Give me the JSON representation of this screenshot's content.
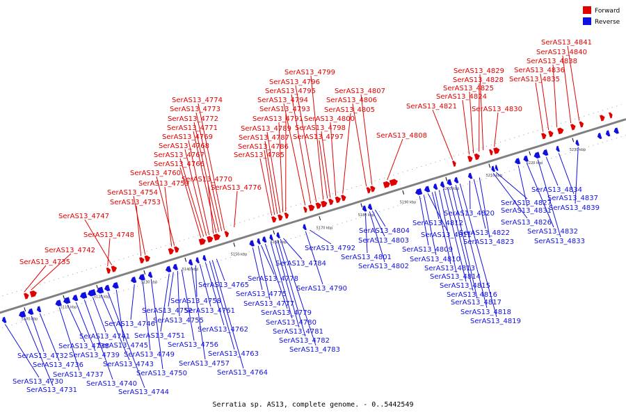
{
  "caption": "Serratia sp. AS13, complete genome. - 0..5442549",
  "legend": [
    {
      "label": "Forward",
      "color": "#e00000"
    },
    {
      "label": "Reverse",
      "color": "#1010e0"
    }
  ],
  "colors": {
    "forward": "#e00000",
    "reverse": "#1010e0",
    "backbone": "#808080"
  },
  "ticks": [
    "5100 kbp",
    "5110 kbp",
    "5120 kbp",
    "5130 kbp",
    "5140 kbp",
    "5150 kbp",
    "5160 kbp",
    "5170 kbp",
    "5180 kbp",
    "5190 kbp",
    "5200 kbp",
    "5210 kbp",
    "5220 kbp",
    "5230 kbp"
  ],
  "forward_genes": [
    "SerAS13_4735",
    "SerAS13_4742",
    "SerAS13_4748",
    "SerAS13_4747",
    "SerAS13_4753",
    "SerAS13_4754",
    "SerAS13_4759",
    "SerAS13_4760",
    "SerAS13_4766",
    "SerAS13_4767",
    "SerAS13_4768",
    "SerAS13_4769",
    "SerAS13_4770",
    "SerAS13_4771",
    "SerAS13_4772",
    "SerAS13_4773",
    "SerAS13_4774",
    "SerAS13_4776",
    "SerAS13_4785",
    "SerAS13_4786",
    "SerAS13_4787",
    "SerAS13_4789",
    "SerAS13_4791",
    "SerAS13_4793",
    "SerAS13_4794",
    "SerAS13_4795",
    "SerAS13_4796",
    "SerAS13_4799",
    "SerAS13_4797",
    "SerAS13_4798",
    "SerAS13_4800",
    "SerAS13_4805",
    "SerAS13_4806",
    "SerAS13_4807",
    "SerAS13_4808",
    "SerAS13_4821",
    "SerAS13_4824",
    "SerAS13_4825",
    "SerAS13_4828",
    "SerAS13_4829",
    "SerAS13_4830",
    "SerAS13_4835",
    "SerAS13_4836",
    "SerAS13_4838",
    "SerAS13_4840",
    "SerAS13_4841"
  ],
  "reverse_genes": [
    "SerAS13_4730",
    "SerAS13_4731",
    "SerAS13_4732",
    "SerAS13_4736",
    "SerAS13_4737",
    "SerAS13_4738",
    "SerAS13_4739",
    "SerAS13_4740",
    "SerAS13_4741",
    "SerAS13_4743",
    "SerAS13_4744",
    "SerAS13_4745",
    "SerAS13_4746",
    "SerAS13_4749",
    "SerAS13_4750",
    "SerAS13_4751",
    "SerAS13_4752",
    "SerAS13_4755",
    "SerAS13_4756",
    "SerAS13_4757",
    "SerAS13_4758",
    "SerAS13_4761",
    "SerAS13_4762",
    "SerAS13_4763",
    "SerAS13_4764",
    "SerAS13_4765",
    "SerAS13_4775",
    "SerAS13_4777",
    "SerAS13_4778",
    "SerAS13_4779",
    "SerAS13_4780",
    "SerAS13_4781",
    "SerAS13_4782",
    "SerAS13_4783",
    "SerAS13_4784",
    "SerAS13_4790",
    "SerAS13_4792",
    "SerAS13_4801",
    "SerAS13_4802",
    "SerAS13_4803",
    "SerAS13_4804",
    "SerAS13_4809",
    "SerAS13_4810",
    "SerAS13_4811",
    "SerAS13_4812",
    "SerAS13_4813",
    "SerAS13_4814",
    "SerAS13_4815",
    "SerAS13_4816",
    "SerAS13_4817",
    "SerAS13_4818",
    "SerAS13_4819",
    "SerAS13_4820",
    "SerAS13_4822",
    "SerAS13_4823",
    "SerAS13_4826",
    "SerAS13_4827",
    "SerAS13_4831",
    "SerAS13_4832",
    "SerAS13_4833",
    "SerAS13_4834",
    "SerAS13_4837",
    "SerAS13_4839"
  ]
}
